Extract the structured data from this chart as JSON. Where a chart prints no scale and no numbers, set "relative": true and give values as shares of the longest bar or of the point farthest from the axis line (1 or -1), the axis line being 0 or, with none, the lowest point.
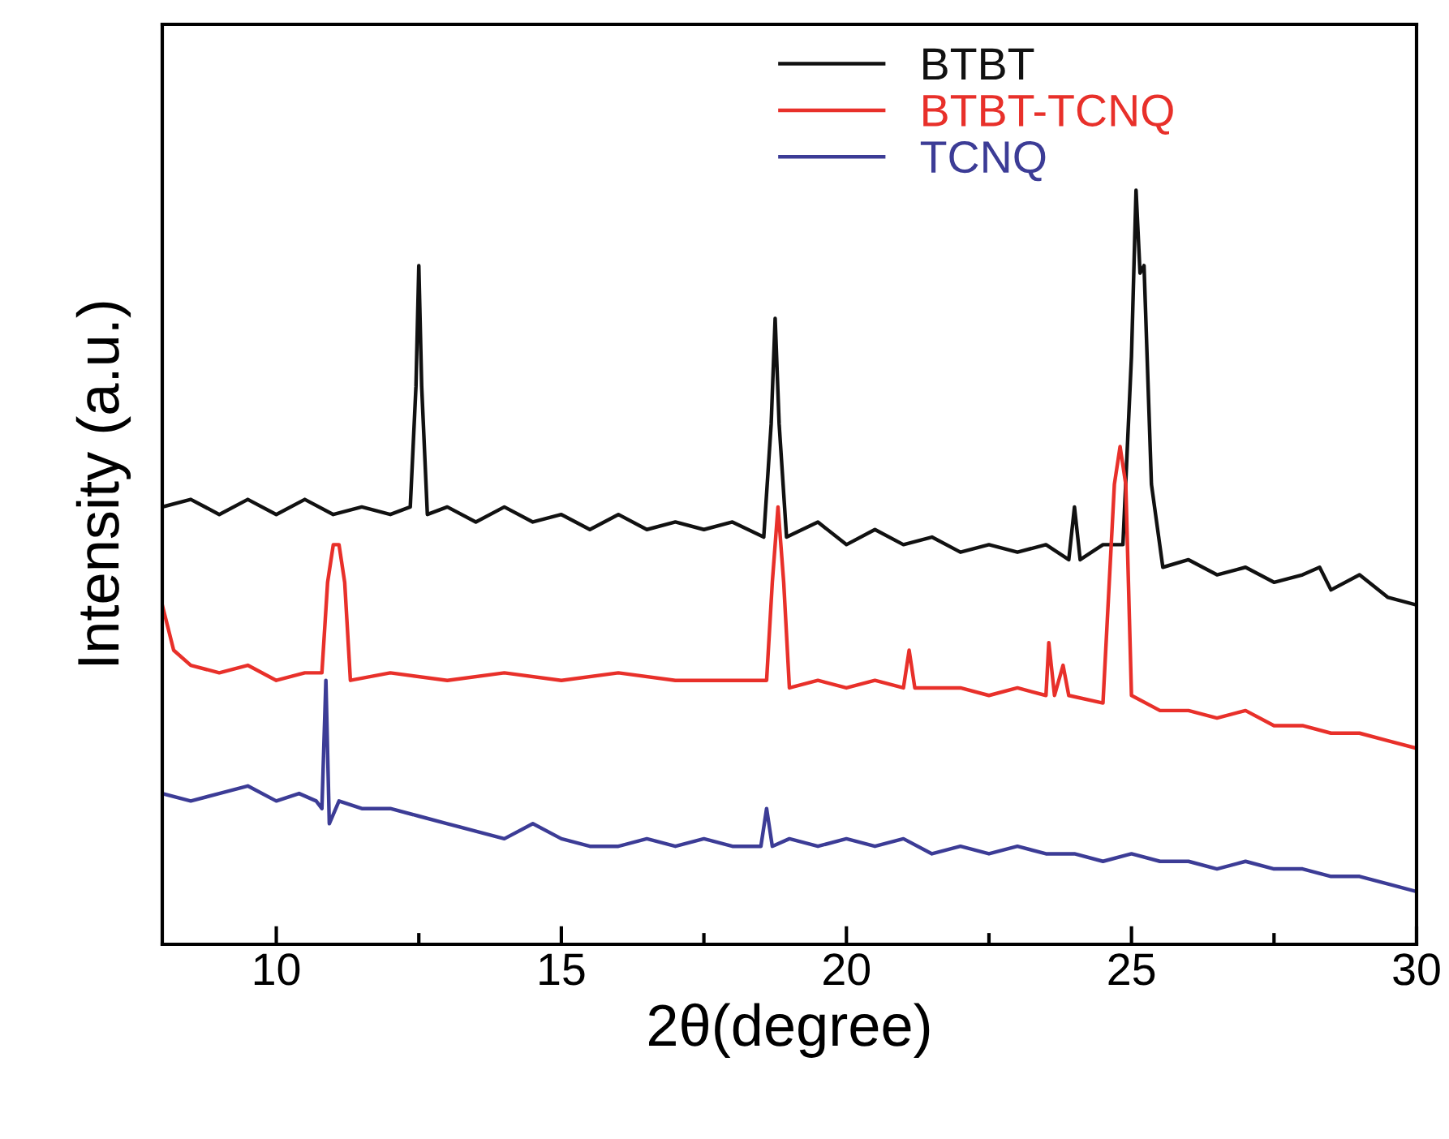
{
  "chart_data": {
    "type": "line",
    "relative": true,
    "xlabel": "2θ(degree)",
    "ylabel": "Intensity (a.u.)",
    "xlim": [
      8,
      30
    ],
    "xticks": [
      10,
      15,
      20,
      25,
      30
    ],
    "legend": "top",
    "grid": false,
    "series": [
      {
        "name": "BTBT",
        "color": "#111111",
        "x": [
          8.0,
          8.5,
          9.0,
          9.5,
          10.0,
          10.5,
          11.0,
          11.5,
          12.0,
          12.35,
          12.45,
          12.5,
          12.55,
          12.65,
          13.0,
          13.5,
          14.0,
          14.5,
          15.0,
          15.5,
          16.0,
          16.5,
          17.0,
          17.5,
          18.0,
          18.55,
          18.68,
          18.75,
          18.82,
          18.95,
          19.5,
          20.0,
          20.5,
          21.0,
          21.5,
          22.0,
          22.5,
          23.0,
          23.5,
          23.9,
          24.0,
          24.1,
          24.5,
          24.85,
          25.0,
          25.08,
          25.15,
          25.22,
          25.35,
          25.55,
          26.0,
          26.5,
          27.0,
          27.5,
          28.0,
          28.3,
          28.5,
          29.0,
          29.5,
          30.0
        ],
        "values": [
          0.58,
          0.59,
          0.57,
          0.59,
          0.57,
          0.59,
          0.57,
          0.58,
          0.57,
          0.58,
          0.74,
          0.9,
          0.74,
          0.57,
          0.58,
          0.56,
          0.58,
          0.56,
          0.57,
          0.55,
          0.57,
          0.55,
          0.56,
          0.55,
          0.56,
          0.54,
          0.69,
          0.83,
          0.69,
          0.54,
          0.56,
          0.53,
          0.55,
          0.53,
          0.54,
          0.52,
          0.53,
          0.52,
          0.53,
          0.51,
          0.58,
          0.51,
          0.53,
          0.53,
          0.78,
          1.0,
          0.89,
          0.9,
          0.61,
          0.5,
          0.51,
          0.49,
          0.5,
          0.48,
          0.49,
          0.5,
          0.47,
          0.49,
          0.46,
          0.45
        ]
      },
      {
        "name": "BTBT-TCNQ",
        "color": "#e8302a",
        "x": [
          8.0,
          8.2,
          8.5,
          9.0,
          9.5,
          10.0,
          10.5,
          10.8,
          10.9,
          11.0,
          11.1,
          11.2,
          11.3,
          12.0,
          13.0,
          14.0,
          15.0,
          16.0,
          17.0,
          18.0,
          18.6,
          18.7,
          18.8,
          18.9,
          19.0,
          19.5,
          20.0,
          20.5,
          21.0,
          21.1,
          21.2,
          22.0,
          22.5,
          23.0,
          23.5,
          23.55,
          23.65,
          23.8,
          23.9,
          24.5,
          24.7,
          24.8,
          24.9,
          25.0,
          25.5,
          26.0,
          26.5,
          27.0,
          27.5,
          28.0,
          28.5,
          29.0,
          29.5,
          30.0
        ],
        "values": [
          0.45,
          0.39,
          0.37,
          0.36,
          0.37,
          0.35,
          0.36,
          0.36,
          0.48,
          0.53,
          0.53,
          0.48,
          0.35,
          0.36,
          0.35,
          0.36,
          0.35,
          0.36,
          0.35,
          0.35,
          0.35,
          0.48,
          0.58,
          0.48,
          0.34,
          0.35,
          0.34,
          0.35,
          0.34,
          0.39,
          0.34,
          0.34,
          0.33,
          0.34,
          0.33,
          0.4,
          0.33,
          0.37,
          0.33,
          0.32,
          0.61,
          0.66,
          0.61,
          0.33,
          0.31,
          0.31,
          0.3,
          0.31,
          0.29,
          0.29,
          0.28,
          0.28,
          0.27,
          0.26
        ]
      },
      {
        "name": "TCNQ",
        "color": "#3c3c96",
        "x": [
          8.0,
          8.5,
          9.0,
          9.5,
          10.0,
          10.4,
          10.7,
          10.8,
          10.87,
          10.93,
          11.1,
          11.5,
          12.0,
          12.5,
          13.0,
          13.5,
          14.0,
          14.5,
          15.0,
          15.5,
          16.0,
          16.5,
          17.0,
          17.5,
          18.0,
          18.5,
          18.6,
          18.7,
          19.0,
          19.5,
          20.0,
          20.5,
          21.0,
          21.5,
          22.0,
          22.5,
          23.0,
          23.5,
          24.0,
          24.5,
          25.0,
          25.5,
          26.0,
          26.5,
          27.0,
          27.5,
          28.0,
          28.5,
          29.0,
          29.5,
          30.0
        ],
        "values": [
          0.2,
          0.19,
          0.2,
          0.21,
          0.19,
          0.2,
          0.19,
          0.18,
          0.35,
          0.16,
          0.19,
          0.18,
          0.18,
          0.17,
          0.16,
          0.15,
          0.14,
          0.16,
          0.14,
          0.13,
          0.13,
          0.14,
          0.13,
          0.14,
          0.13,
          0.13,
          0.18,
          0.13,
          0.14,
          0.13,
          0.14,
          0.13,
          0.14,
          0.12,
          0.13,
          0.12,
          0.13,
          0.12,
          0.12,
          0.11,
          0.12,
          0.11,
          0.11,
          0.1,
          0.11,
          0.1,
          0.1,
          0.09,
          0.09,
          0.08,
          0.07
        ]
      }
    ]
  }
}
